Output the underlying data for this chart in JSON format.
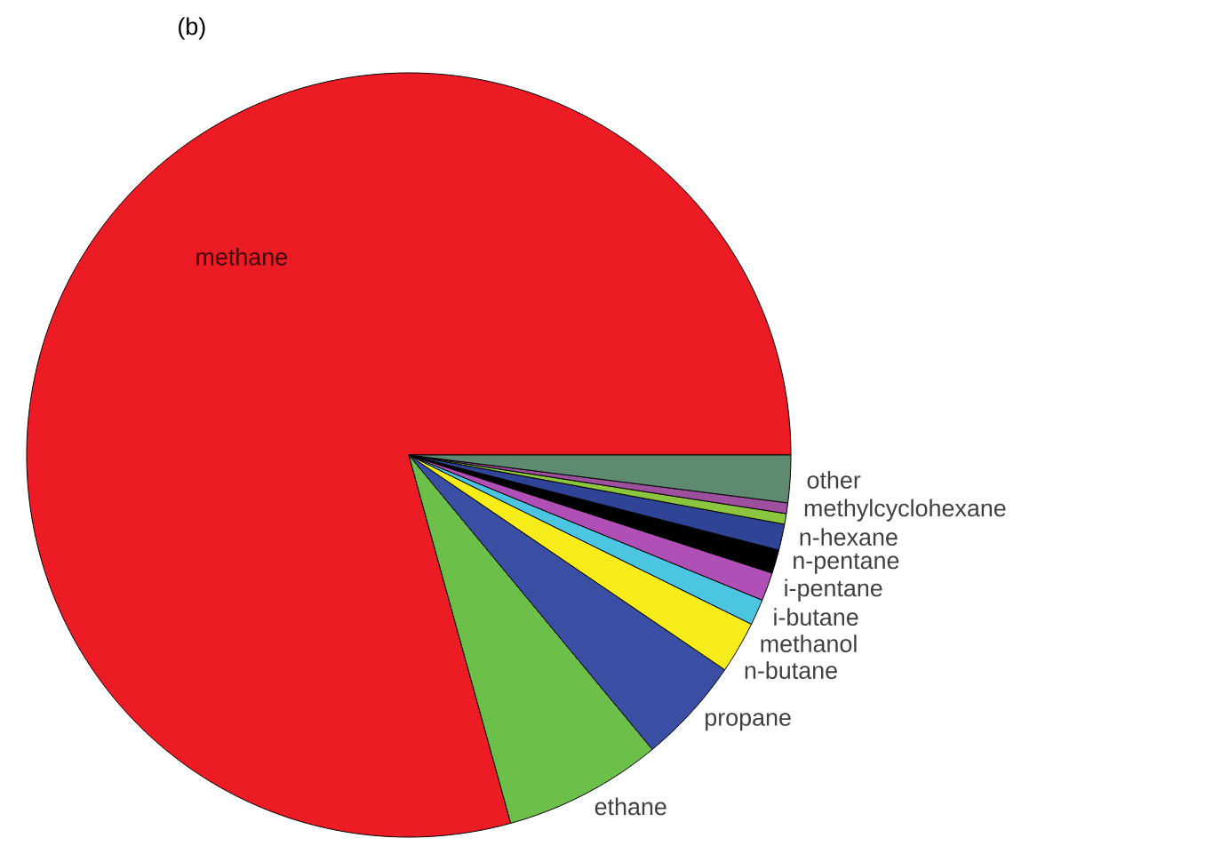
{
  "chart_data": {
    "type": "pie",
    "title": "(b)",
    "categories": [
      "methane",
      "ethane",
      "propane",
      "n-butane",
      "methanol",
      "i-butane",
      "i-pentane",
      "n-pentane",
      "n-hexane",
      "methylcyclohexane",
      "other"
    ],
    "values": [
      79.3,
      6.7,
      4.5,
      2.2,
      1.1,
      1.2,
      1.0,
      1.1,
      0.45,
      0.45,
      2.0
    ],
    "colors": [
      "#ed1c24",
      "#6cc04a",
      "#3a4fa3",
      "#f5ec1a",
      "#4cc5e0",
      "#b04fb5",
      "#000000",
      "#2f4496",
      "#8cc63f",
      "#9e4f9e",
      "#5f8a72"
    ]
  }
}
